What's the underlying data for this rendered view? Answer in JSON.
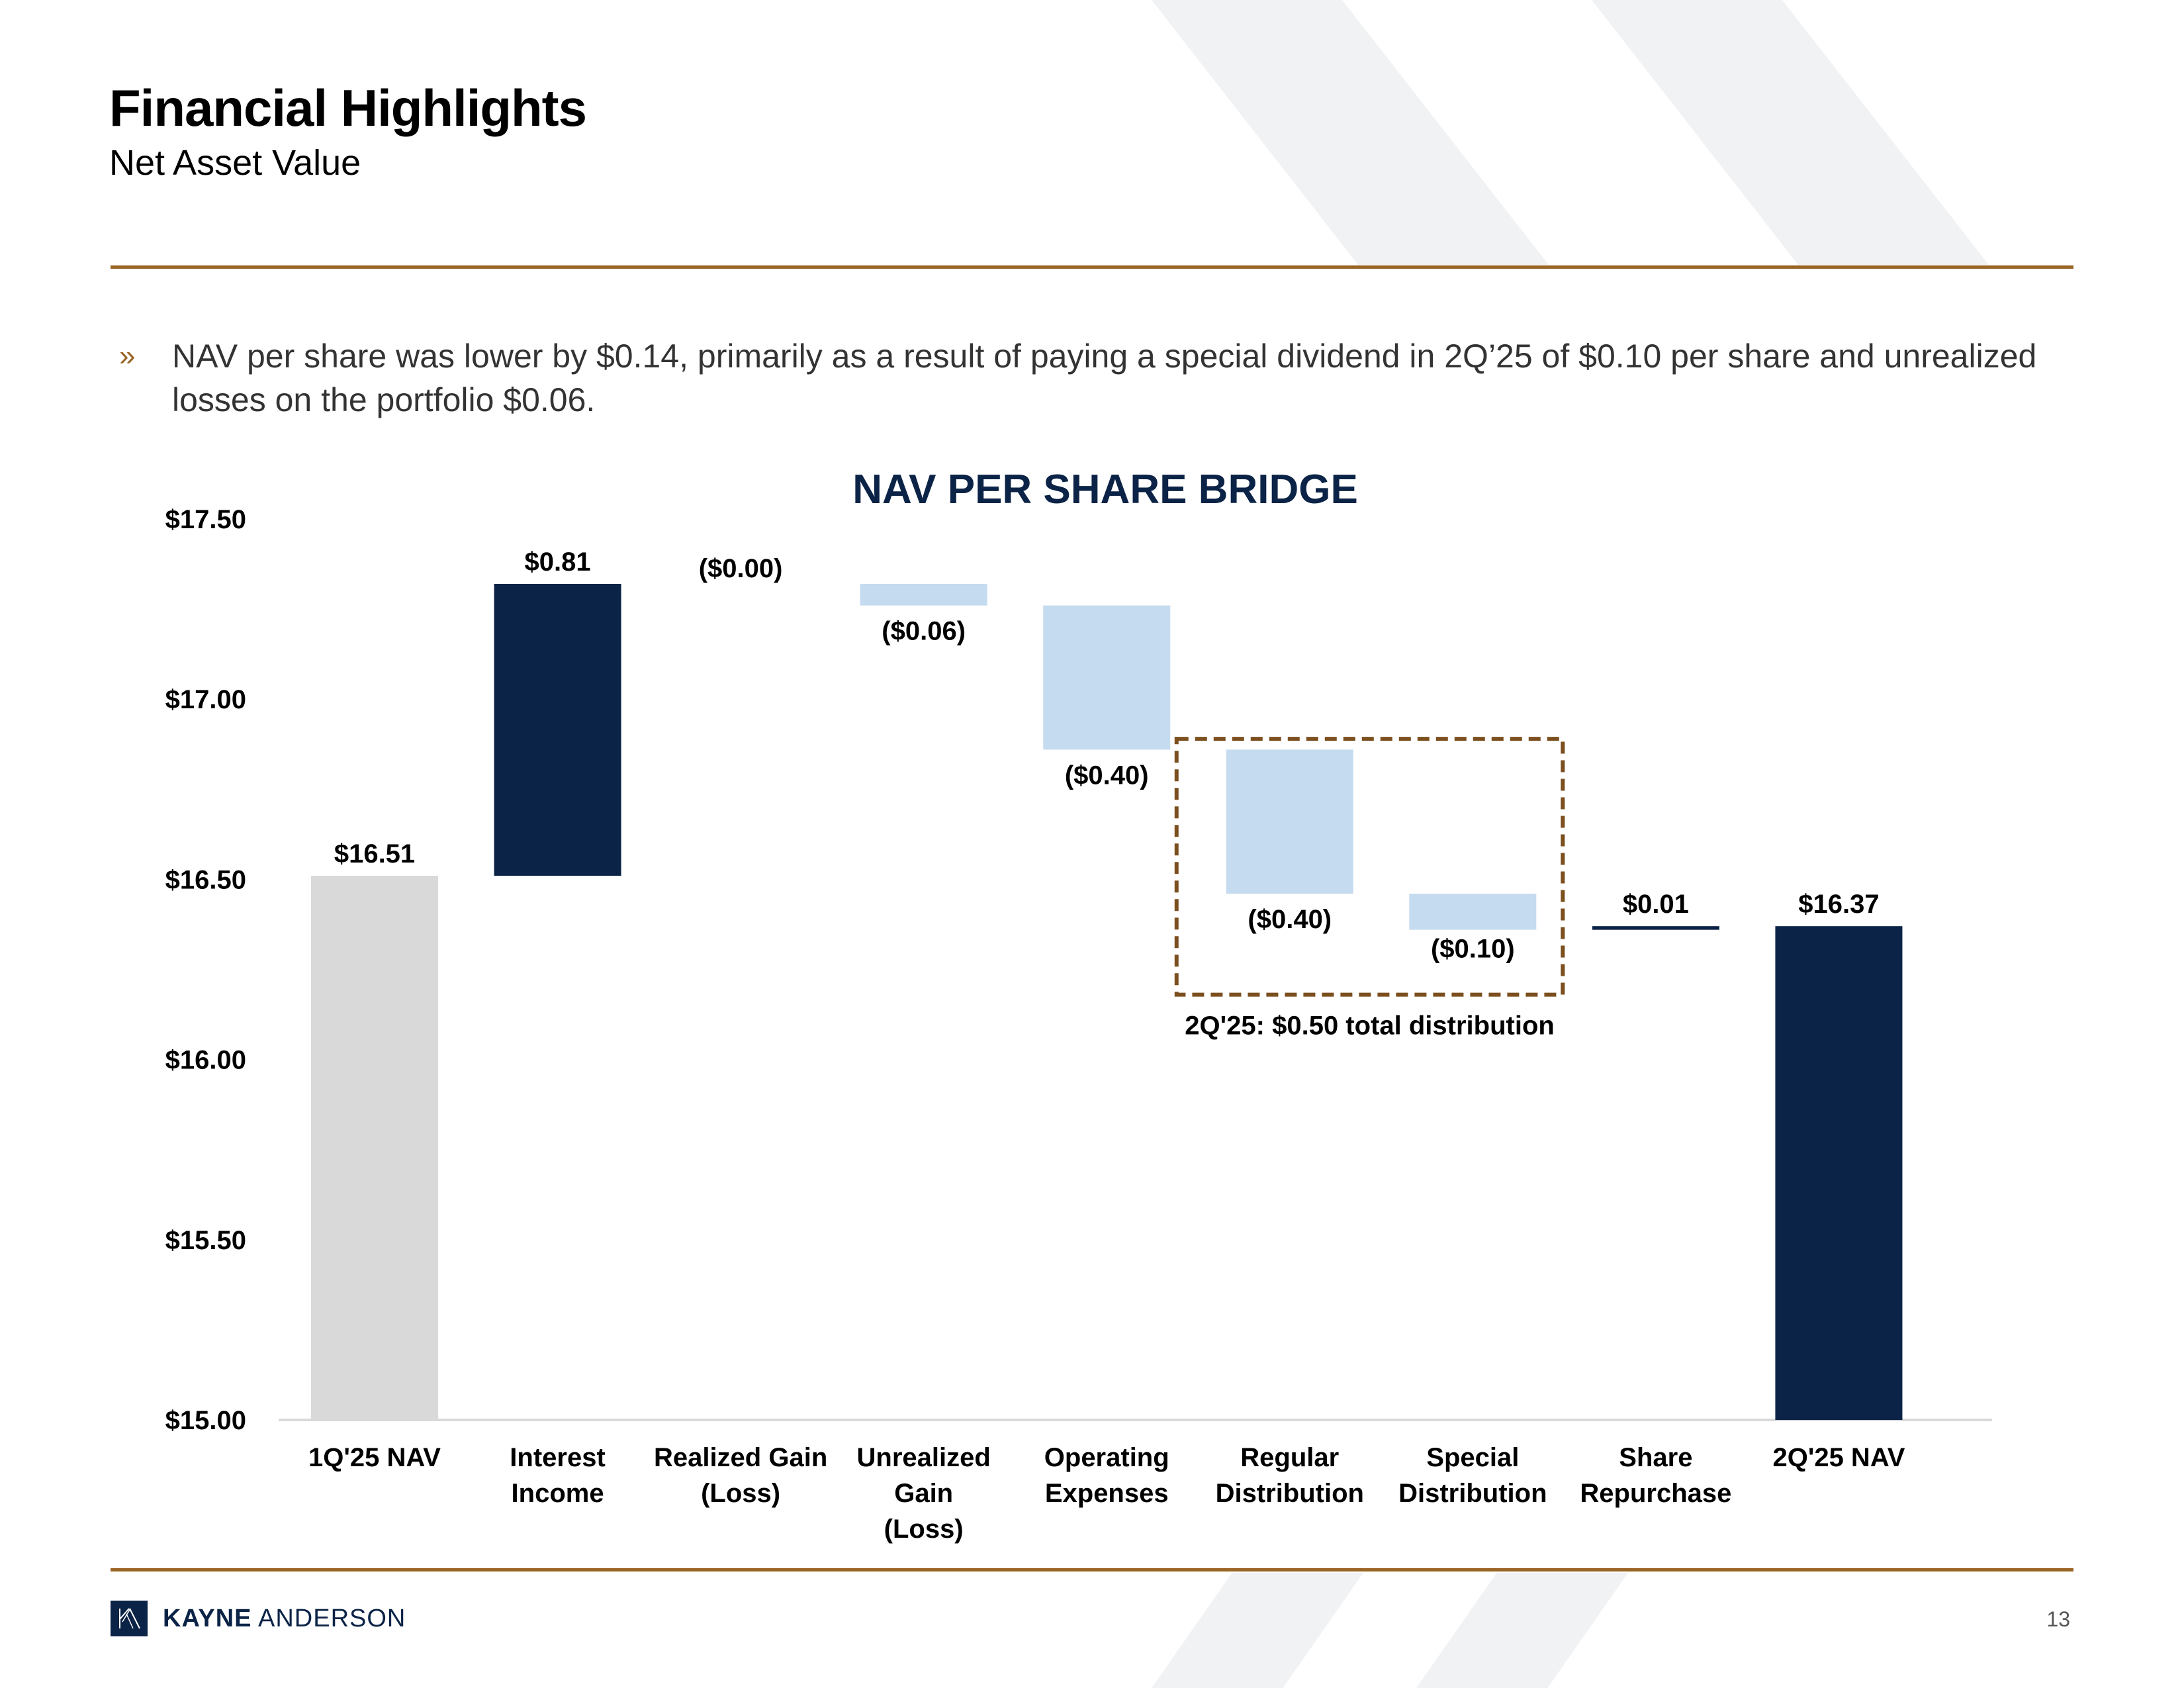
{
  "header": {
    "title": "Financial Highlights",
    "subtitle": "Net Asset Value"
  },
  "bullet": {
    "glyph": "»",
    "text": "NAV per share was lower by $0.14, primarily as a result of paying a special dividend in 2Q’25 of $0.10 per share and unrealized losses on the portfolio $0.06."
  },
  "colors": {
    "navy": "#0b2346",
    "light_blue": "#c5dbef",
    "gray": "#d9d9d9",
    "brown": "#7b4f1e",
    "rule": "#9a6424"
  },
  "chart_data": {
    "type": "bar",
    "subtype": "waterfall",
    "title": "NAV PER SHARE BRIDGE",
    "xlabel": "",
    "ylabel": "",
    "ylim": [
      15.0,
      17.5
    ],
    "yticks": [
      15.0,
      15.5,
      16.0,
      16.5,
      17.0,
      17.5
    ],
    "ytick_labels": [
      "$15.00",
      "$15.50",
      "$16.00",
      "$16.50",
      "$17.00",
      "$17.50"
    ],
    "grid": false,
    "categories": [
      [
        "1Q'25 NAV"
      ],
      [
        "Interest",
        "Income"
      ],
      [
        "Realized Gain",
        "(Loss)"
      ],
      [
        "Unrealized",
        "Gain",
        "(Loss)"
      ],
      [
        "Operating",
        "Expenses"
      ],
      [
        "Regular",
        "Distribution"
      ],
      [
        "Special",
        "Distribution"
      ],
      [
        "Share",
        "Repurchase"
      ],
      [
        "2Q'25 NAV"
      ]
    ],
    "values": [
      16.51,
      0.81,
      0.0,
      -0.06,
      -0.4,
      -0.4,
      -0.1,
      0.01,
      16.37
    ],
    "kinds": [
      "total",
      "increase",
      "decrease",
      "decrease",
      "decrease",
      "decrease",
      "decrease",
      "increase",
      "total"
    ],
    "data_labels": [
      "$16.51",
      "$0.81",
      "($0.00)",
      "($0.06)",
      "($0.40)",
      "($0.40)",
      "($0.10)",
      "$0.01",
      "$16.37"
    ],
    "annotation": {
      "text": "2Q'25: $0.50 total distribution",
      "spans_categories": [
        5,
        6
      ],
      "style": "dashed-box"
    }
  },
  "footer": {
    "brand_bold": "KAYNE",
    "brand_light": "ANDERSON",
    "page_number": "13"
  }
}
